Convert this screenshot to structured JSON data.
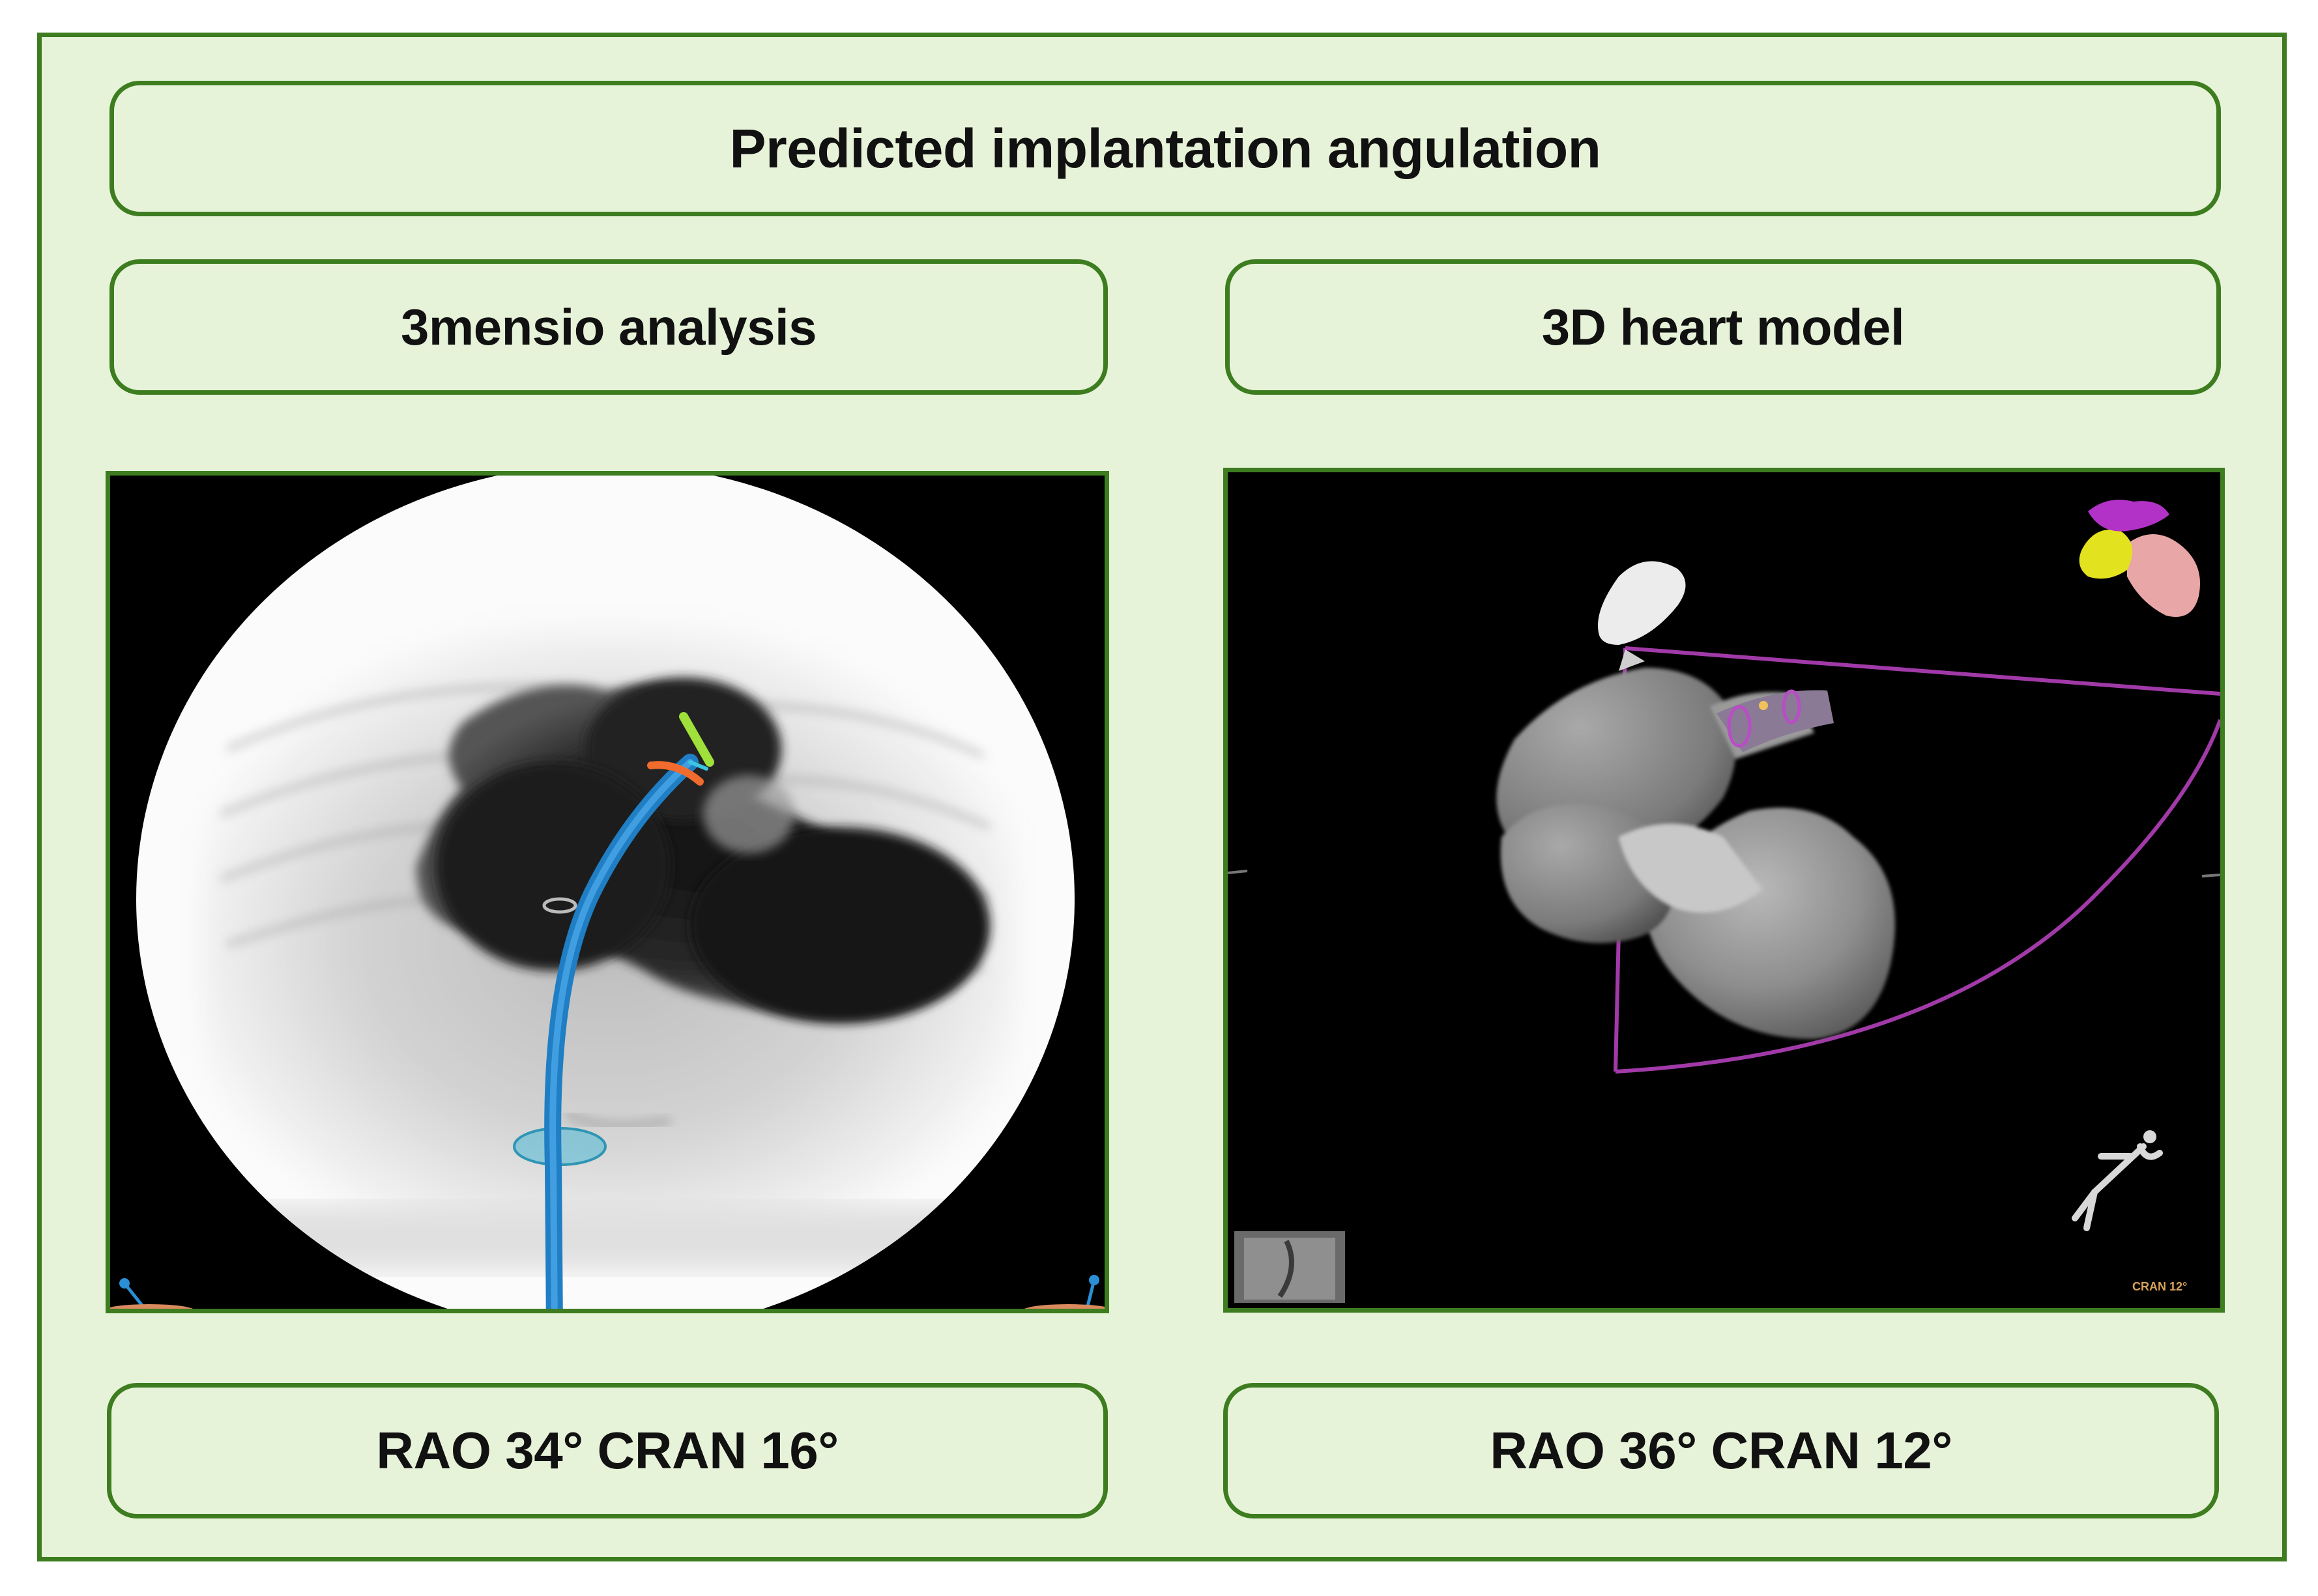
{
  "title": "Predicted implantation angulation",
  "methods": [
    {
      "label": "3mensio analysis",
      "result": "RAO 34° CRAN 16°"
    },
    {
      "label": "3D heart model",
      "result": "RAO 36° CRAN 12°"
    }
  ],
  "overlay_text": {
    "cran_readout": "CRAN 12°"
  },
  "colors": {
    "frame_fill": "#e7f3d9",
    "frame_border": "#3d7d20",
    "catheter": "#2a8fd6",
    "plane_outline": "#a13aa8"
  }
}
